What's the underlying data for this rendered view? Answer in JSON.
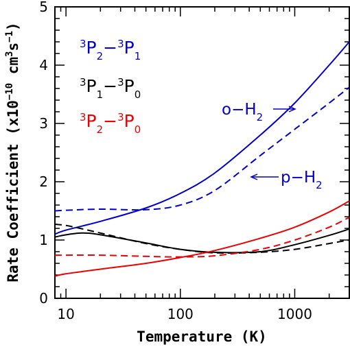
{
  "chart_data": {
    "type": "line",
    "title": "",
    "xlabel": "Temperature (K)",
    "ylabel_parts": {
      "main": "Rate Coefficient (x10",
      "exp1": "−10",
      "mid": " cm",
      "exp2": "3",
      "mid2": "s",
      "exp3": "−1",
      "end": ")"
    },
    "xscale": "log",
    "xlim": [
      8,
      3000
    ],
    "ylim": [
      0,
      5
    ],
    "x_ticks": [
      10,
      100,
      1000
    ],
    "x_tick_labels": [
      "10",
      "100",
      "1000"
    ],
    "y_ticks": [
      0,
      1,
      2,
      3,
      4,
      5
    ],
    "y_tick_labels": [
      "0",
      "1",
      "2",
      "3",
      "4",
      "5"
    ],
    "legend": [
      {
        "pre": "3",
        "a": "P",
        "asub": "2",
        "dash": "−",
        "mid": "3",
        "b": "P",
        "bsub": "1",
        "color": "#0000cc"
      },
      {
        "pre": "3",
        "a": "P",
        "asub": "1",
        "dash": "−",
        "mid": "3",
        "b": "P",
        "bsub": "0",
        "color": "#000000"
      },
      {
        "pre": "3",
        "a": "P",
        "asub": "2",
        "dash": "−",
        "mid": "3",
        "b": "P",
        "bsub": "0",
        "color": "#ee0000"
      }
    ],
    "annotations": [
      {
        "text": "o−H",
        "sub": "2",
        "color": "#0000cc"
      },
      {
        "text": "p−H",
        "sub": "2",
        "color": "#0000cc"
      }
    ],
    "series": [
      {
        "transition": "3P2-3P1",
        "partner": "o-H2",
        "color": "#0000cc",
        "style": "solid",
        "x": [
          8,
          10,
          20,
          50,
          100,
          200,
          500,
          1000,
          2000,
          3000
        ],
        "y": [
          1.1,
          1.17,
          1.32,
          1.55,
          1.8,
          2.15,
          2.8,
          3.35,
          4.0,
          4.4
        ]
      },
      {
        "transition": "3P2-3P1",
        "partner": "p-H2",
        "color": "#0000cc",
        "style": "dashed",
        "x": [
          8,
          10,
          20,
          50,
          100,
          200,
          500,
          1000,
          2000,
          3000
        ],
        "y": [
          1.5,
          1.51,
          1.53,
          1.52,
          1.6,
          1.85,
          2.45,
          2.9,
          3.35,
          3.62
        ]
      },
      {
        "transition": "3P1-3P0",
        "partner": "o-H2",
        "color": "#000000",
        "style": "solid",
        "x": [
          8,
          10,
          14,
          20,
          50,
          100,
          200,
          500,
          1000,
          2000,
          3000
        ],
        "y": [
          1.05,
          1.09,
          1.12,
          1.09,
          0.95,
          0.84,
          0.79,
          0.8,
          0.92,
          1.08,
          1.19
        ]
      },
      {
        "transition": "3P1-3P0",
        "partner": "p-H2",
        "color": "#000000",
        "style": "dashed",
        "x": [
          8,
          10,
          14,
          20,
          50,
          100,
          200,
          500,
          1000,
          2000,
          3000
        ],
        "y": [
          1.27,
          1.25,
          1.19,
          1.12,
          0.94,
          0.84,
          0.78,
          0.79,
          0.84,
          0.94,
          1.0
        ]
      },
      {
        "transition": "3P2-3P0",
        "partner": "o-H2",
        "color": "#ee0000",
        "style": "solid",
        "x": [
          8,
          10,
          20,
          50,
          100,
          200,
          500,
          1000,
          2000,
          3000
        ],
        "y": [
          0.38,
          0.42,
          0.5,
          0.6,
          0.7,
          0.82,
          1.03,
          1.22,
          1.48,
          1.67
        ]
      },
      {
        "transition": "3P2-3P0",
        "partner": "p-H2",
        "color": "#ee0000",
        "style": "dashed",
        "x": [
          8,
          10,
          20,
          50,
          100,
          200,
          500,
          1000,
          2000,
          3000
        ],
        "y": [
          0.74,
          0.74,
          0.74,
          0.72,
          0.71,
          0.73,
          0.84,
          1.0,
          1.22,
          1.39
        ]
      }
    ]
  }
}
